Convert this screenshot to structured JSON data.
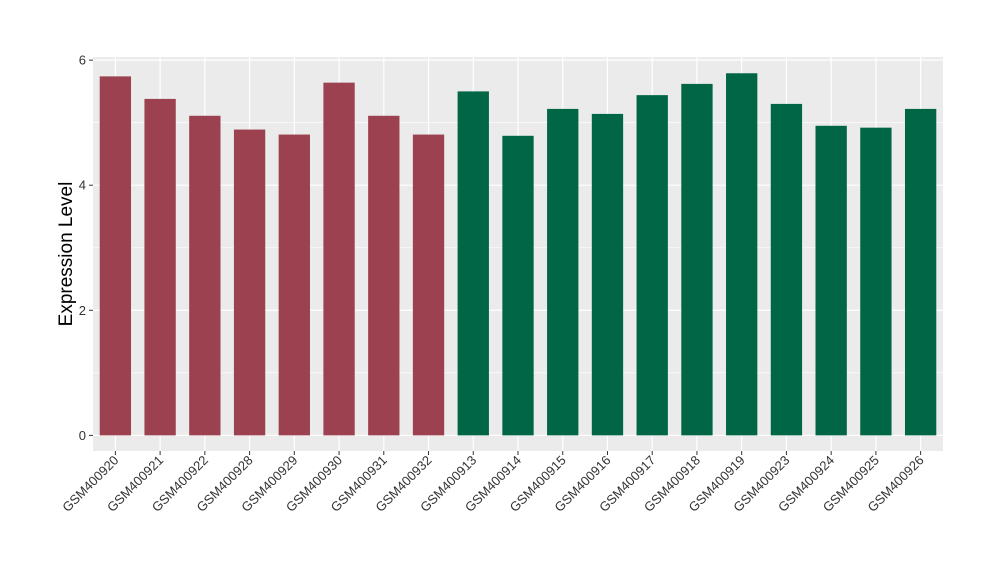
{
  "chart_data": {
    "type": "bar",
    "title": "",
    "xlabel": "",
    "ylabel": "Expression Level",
    "ylim": [
      -0.25,
      6.05
    ],
    "yticks": [
      0,
      2,
      4,
      6
    ],
    "grid": true,
    "categories": [
      "GSM400920",
      "GSM400921",
      "GSM400922",
      "GSM400928",
      "GSM400929",
      "GSM400930",
      "GSM400931",
      "GSM400932",
      "GSM400913",
      "GSM400914",
      "GSM400915",
      "GSM400916",
      "GSM400917",
      "GSM400918",
      "GSM400919",
      "GSM400923",
      "GSM400924",
      "GSM400925",
      "GSM400926"
    ],
    "values": [
      5.74,
      5.38,
      5.11,
      4.89,
      4.81,
      5.64,
      5.11,
      4.81,
      5.5,
      4.79,
      5.22,
      5.14,
      5.44,
      5.62,
      5.79,
      5.3,
      4.95,
      4.92,
      5.22
    ],
    "groups": [
      0,
      0,
      0,
      0,
      0,
      0,
      0,
      0,
      1,
      1,
      1,
      1,
      1,
      1,
      1,
      1,
      1,
      1,
      1
    ],
    "colors": [
      "#9b4150",
      "#006646"
    ],
    "panel_background": "#ebebeb",
    "grid_color": "#ffffff"
  }
}
